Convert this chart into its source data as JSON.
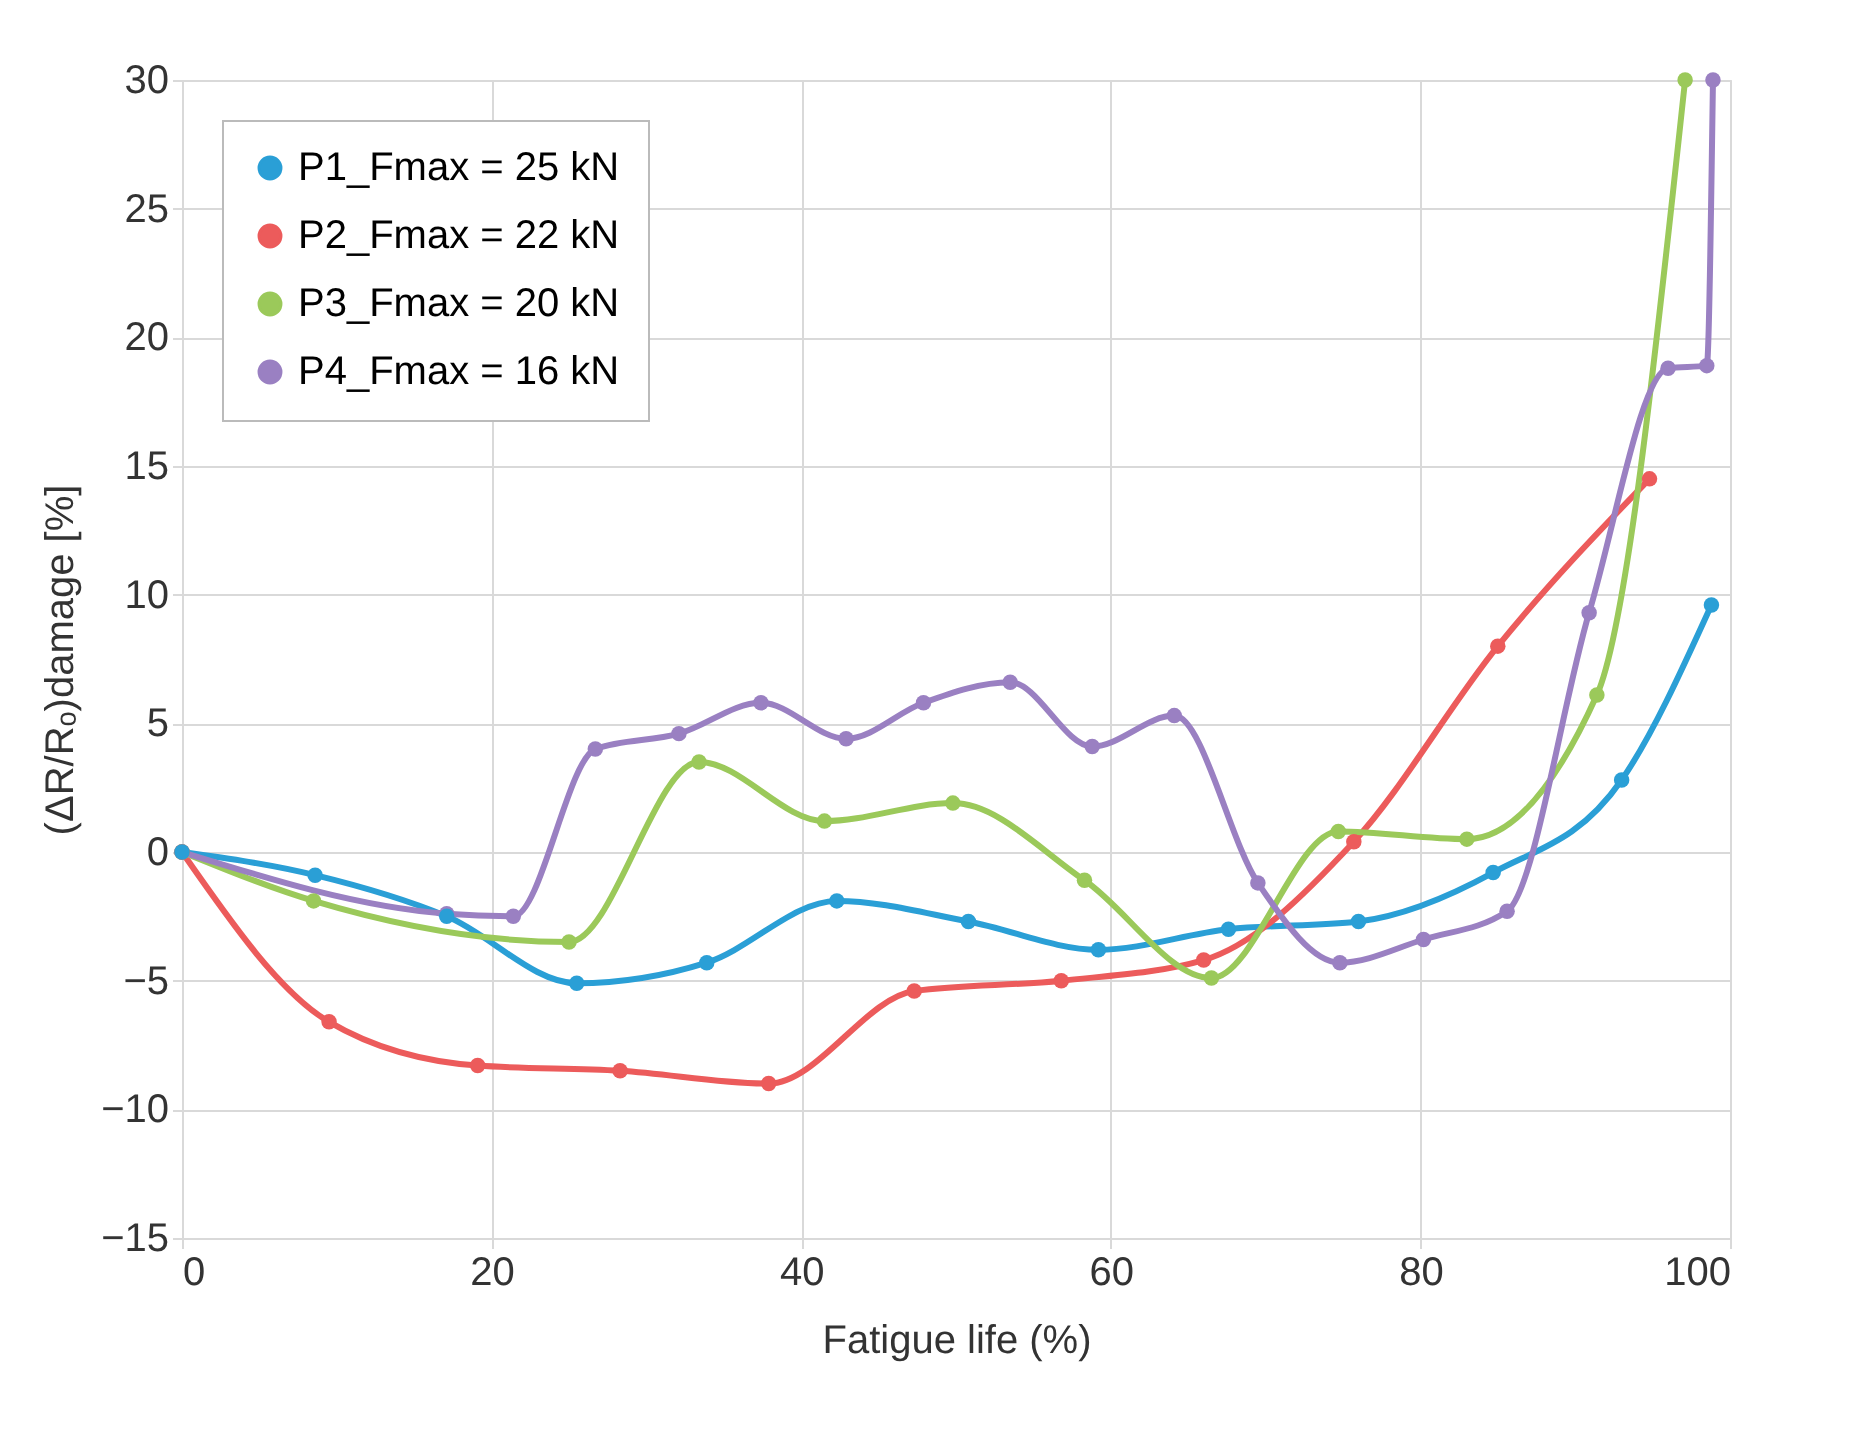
{
  "chart_data": {
    "type": "line",
    "xlabel": "Fatigue life (%)",
    "ylabel": "(ΔR/Rₒ)damage [%]",
    "xlim": [
      0,
      100
    ],
    "xticks": [
      0,
      20,
      40,
      60,
      80,
      100
    ],
    "ylim": [
      -15,
      30
    ],
    "yticks": [
      -15,
      -10,
      -5,
      0,
      5,
      10,
      15,
      20,
      25,
      30
    ],
    "grid": true,
    "legend": "top left",
    "marker": "circle",
    "line_style": "solid",
    "series": [
      {
        "name": "P1_Fmax = 25 kN",
        "color": "#2a9fd6",
        "x": [
          0,
          8.6,
          17.1,
          25.5,
          33.9,
          42.3,
          50.8,
          59.2,
          67.6,
          76,
          84.7,
          93,
          98.8
        ],
        "values": [
          0,
          -0.9,
          -2.5,
          -5.1,
          -4.3,
          -1.9,
          -2.7,
          -3.8,
          -3.0,
          -2.7,
          -0.8,
          2.8,
          9.6
        ]
      },
      {
        "name": "P2_Fmax = 22 kN",
        "color": "#ec5b5b",
        "x": [
          0,
          9.5,
          19.1,
          28.3,
          37.9,
          47.3,
          56.8,
          66,
          75.7,
          85,
          94.8
        ],
        "values": [
          0,
          -6.6,
          -8.3,
          -8.5,
          -9.0,
          -5.4,
          -5.0,
          -4.2,
          0.4,
          8.0,
          14.5
        ]
      },
      {
        "name": "P3_Fmax = 20 kN",
        "color": "#9bc95a",
        "x": [
          0,
          8.5,
          25,
          33.4,
          41.5,
          49.8,
          58.3,
          66.5,
          74.7,
          83,
          91.4,
          97.1
        ],
        "values": [
          0,
          -1.9,
          -3.5,
          3.5,
          1.2,
          1.9,
          -1.1,
          -4.9,
          0.8,
          0.5,
          6.1,
          30
        ]
      },
      {
        "name": "P4_Fmax = 16 kN",
        "color": "#9a80c2",
        "x": [
          0,
          17.1,
          21.4,
          26.7,
          32.1,
          37.4,
          42.9,
          47.9,
          53.5,
          58.8,
          64.1,
          69.5,
          74.8,
          80.2,
          85.6,
          90.9,
          96,
          98.5,
          98.9
        ],
        "values": [
          0,
          -2.4,
          -2.5,
          4.0,
          4.6,
          5.8,
          4.4,
          5.8,
          6.6,
          4.1,
          5.3,
          -1.2,
          -4.3,
          -3.4,
          -2.3,
          9.3,
          18.8,
          18.9,
          30
        ]
      }
    ]
  }
}
